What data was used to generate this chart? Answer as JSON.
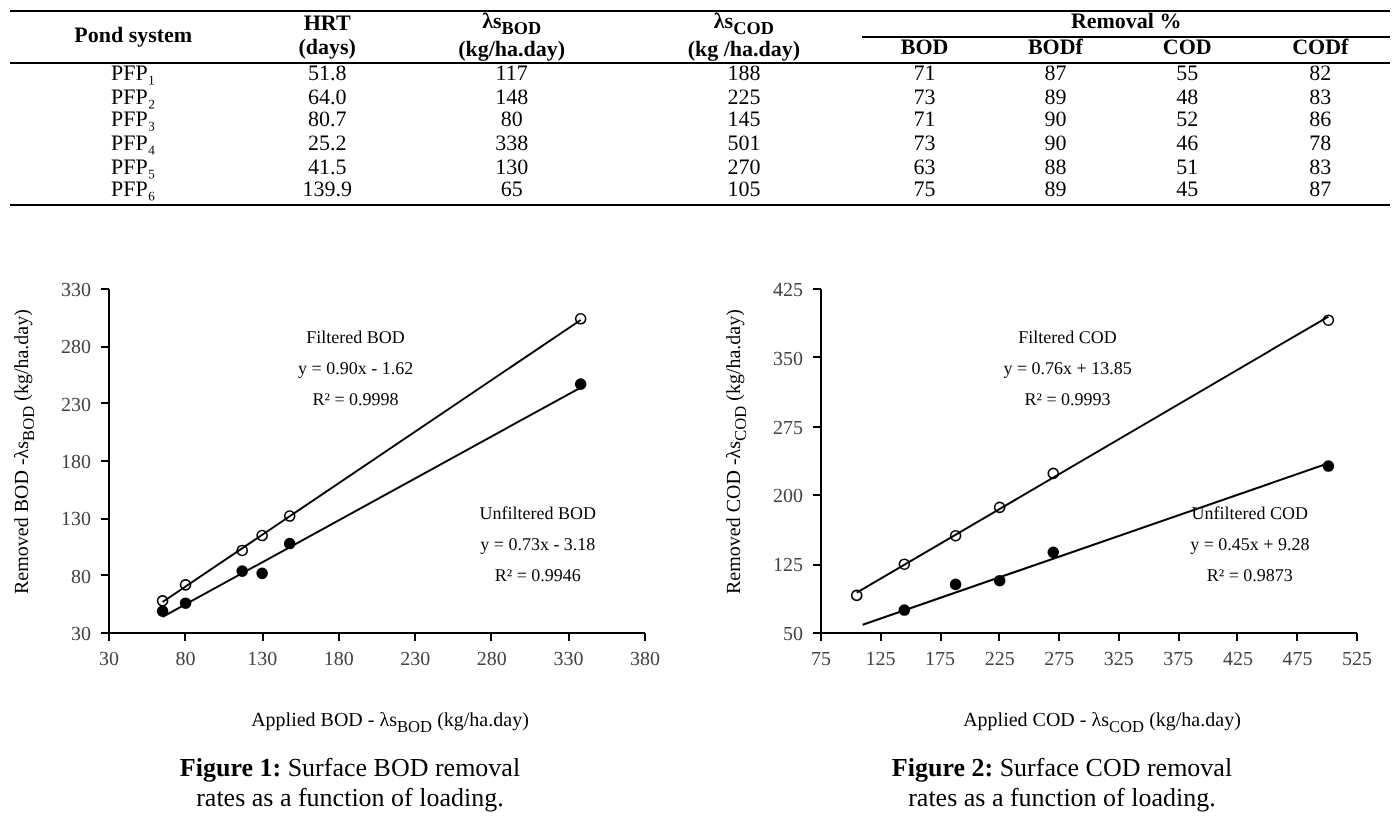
{
  "chart_data": [
    {
      "type": "other",
      "annotations": [
        "Pond system",
        "HRT\n(days)",
        "λs$_{BOD}$\n(kg/ha.day)",
        "λs$_{COD}$\n(kg /ha.day)",
        "Removal %",
        "BOD",
        "BODf",
        "COD",
        "CODf",
        "PFP₁",
        "51.8",
        "117",
        "188",
        "71",
        "87",
        "55",
        "82",
        "PFP₂",
        "64.0",
        "148",
        "225",
        "73",
        "89",
        "48",
        "83",
        "PFP₃",
        "80.7",
        "80",
        "145",
        "71",
        "90",
        "52",
        "86",
        "PFP₄",
        "25.2",
        "338",
        "501",
        "73",
        "90",
        "46",
        "78",
        "PFP₅",
        "41.5",
        "130",
        "270",
        "63",
        "88",
        "51",
        "83",
        "PFP₆",
        "139.9",
        "65",
        "105",
        "75",
        "89",
        "45",
        "87"
      ]
    },
    {
      "type": "scatter",
      "xlabel": "Applied BOD - λs$_{BOD}$ (kg/ha.day)",
      "ylabel": "Removed BOD -λs$_{BOD}$ (kg/ha.day)",
      "xlim": [
        30,
        380
      ],
      "xticks": [
        30,
        80,
        130,
        180,
        230,
        280,
        330,
        380
      ],
      "ylim": [
        30,
        330
      ],
      "yticks": [
        30,
        80,
        130,
        180,
        230,
        280,
        330
      ],
      "grid": false,
      "series": [
        {
          "x": [
            117,
            148,
            80,
            338,
            130,
            65
          ],
          "values": [
            102,
            132,
            72,
            304,
            115,
            58
          ],
          "color": "#ffffff",
          "marker": "circle"
        },
        {
          "x": [
            117,
            148,
            80,
            338,
            130,
            65
          ],
          "values": [
            84,
            108,
            56,
            247,
            82,
            49
          ],
          "color": "#000000",
          "marker": "circle"
        },
        {
          "type": "line",
          "x": [
            65,
            338
          ],
          "values": [
            57,
            303
          ],
          "color": "#000000",
          "marker": "none"
        },
        {
          "type": "line",
          "x": [
            65,
            338
          ],
          "values": [
            44,
            244
          ],
          "color": "#000000",
          "marker": "none"
        }
      ],
      "annotations": [
        "Filtered BOD",
        "y = 0.90x - 1.62",
        "R² = 0.9998",
        "Unfiltered BOD",
        "y = 0.73x - 3.18",
        "R² = 0.9946",
        "Figure 1: Surface BOD removal\nrates as a function of loading."
      ]
    },
    {
      "type": "scatter",
      "xlabel": "Applied COD - λs$_{COD}$ (kg/ha.day)",
      "ylabel": "Removed COD -λs$_{COD}$ (kg/ha.day)",
      "xlim": [
        75,
        525
      ],
      "xticks": [
        75,
        125,
        175,
        225,
        275,
        325,
        375,
        425,
        475,
        525
      ],
      "ylim": [
        50,
        425
      ],
      "yticks": [
        50,
        125,
        200,
        275,
        350,
        425
      ],
      "grid": false,
      "series": [
        {
          "x": [
            188,
            225,
            145,
            501,
            270,
            105
          ],
          "values": [
            156,
            187,
            125,
            391,
            224,
            91
          ],
          "color": "#ffffff",
          "marker": "circle"
        },
        {
          "x": [
            188,
            225,
            145,
            501,
            270
          ],
          "values": [
            103,
            107,
            75,
            232,
            138
          ],
          "color": "#000000",
          "marker": "circle"
        },
        {
          "type": "line",
          "x": [
            105,
            501
          ],
          "values": [
            94,
            395
          ],
          "color": "#000000",
          "marker": "none"
        },
        {
          "type": "line",
          "x": [
            110,
            501
          ],
          "values": [
            59,
            235
          ],
          "color": "#000000",
          "marker": "none"
        }
      ],
      "annotations": [
        "Filtered COD",
        "y = 0.76x + 13.85",
        "R² = 0.9993",
        "Unfiltered COD",
        "y = 0.45x + 9.28",
        "R² = 0.9873",
        "Figure 2: Surface COD removal\nrates as a function of loading."
      ]
    }
  ]
}
